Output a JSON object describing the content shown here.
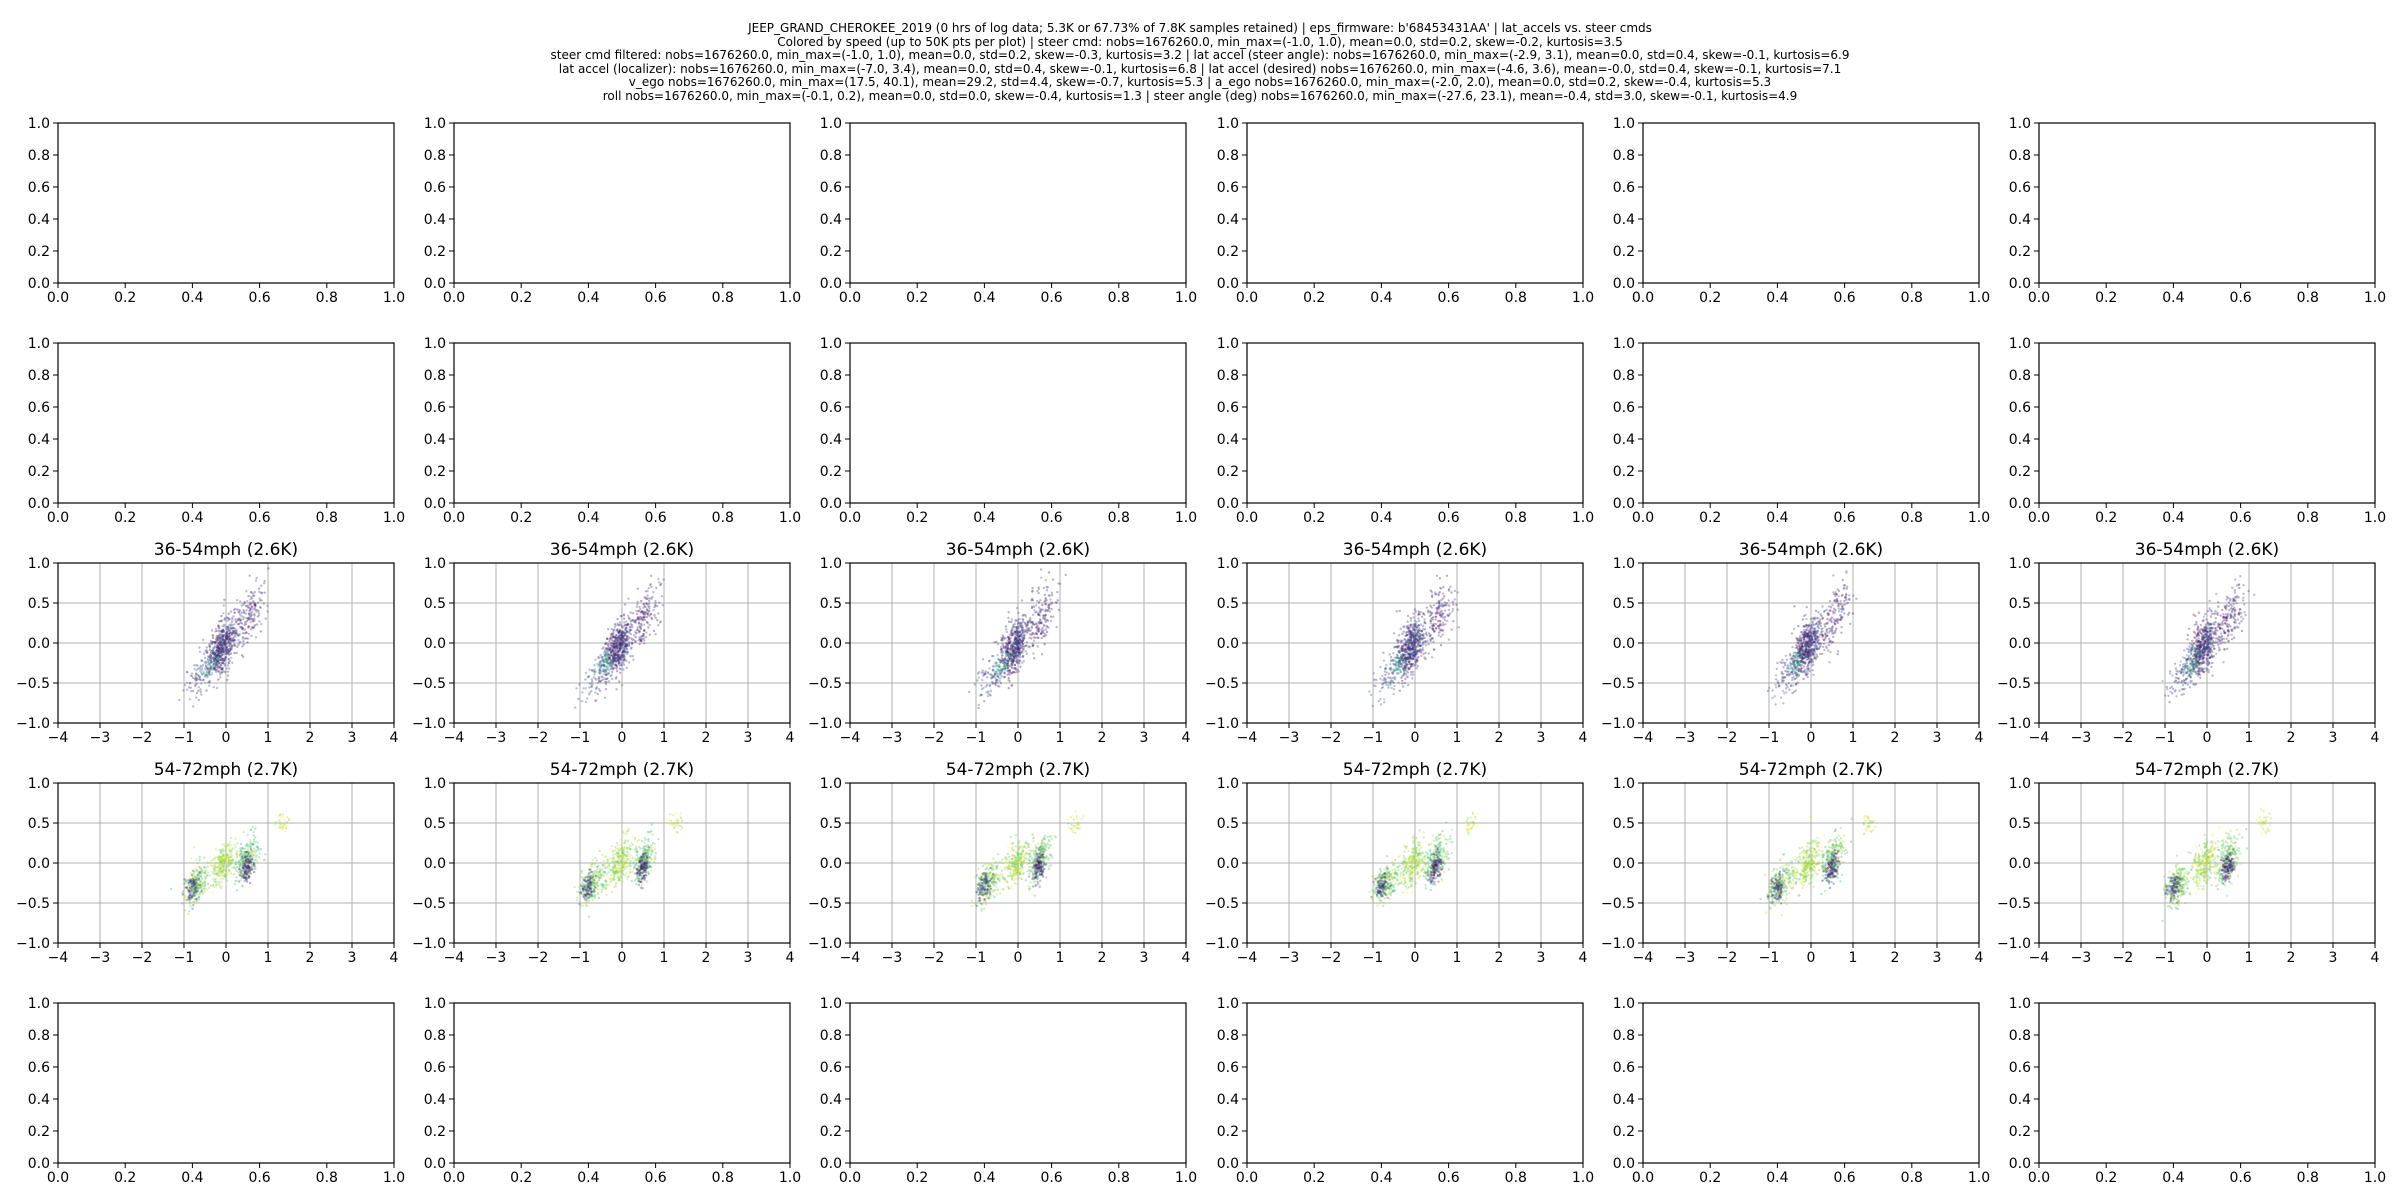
{
  "header": {
    "lines": [
      "JEEP_GRAND_CHEROKEE_2019 (0 hrs of log data; 5.3K or 67.73% of 7.8K samples retained) | eps_firmware: b'68453431AA' | lat_accels vs. steer cmds",
      "Colored by  speed (up to 50K pts per plot) | steer cmd: nobs=1676260.0, min_max=(-1.0, 1.0), mean=0.0, std=0.2, skew=-0.2, kurtosis=3.5",
      "steer cmd filtered: nobs=1676260.0, min_max=(-1.0, 1.0), mean=0.0, std=0.2, skew=-0.3, kurtosis=3.2 | lat accel (steer angle): nobs=1676260.0, min_max=(-2.9, 3.1), mean=0.0, std=0.4, skew=-0.1, kurtosis=6.9",
      "lat accel (localizer): nobs=1676260.0, min_max=(-7.0, 3.4), mean=0.0, std=0.4, skew=-0.1, kurtosis=6.8 | lat accel (desired) nobs=1676260.0, min_max=(-4.6, 3.6), mean=-0.0, std=0.4, skew=-0.1, kurtosis=7.1",
      "v_ego nobs=1676260.0, min_max=(17.5, 40.1), mean=29.2, std=4.4, skew=-0.7, kurtosis=5.3 | a_ego nobs=1676260.0, min_max=(-2.0, 2.0), mean=0.0, std=0.2, skew=-0.4, kurtosis=5.3",
      "roll nobs=1676260.0, min_max=(-0.1, 0.2), mean=0.0, std=0.0, skew=-0.4, kurtosis=1.3 | steer angle (deg) nobs=1676260.0, min_max=(-27.6, 23.1), mean=-0.4, std=3.0, skew=-0.1, kurtosis=4.9"
    ]
  },
  "chart_data": {
    "type": "scatter",
    "grid_rows": 5,
    "grid_cols": 6,
    "empty_axes": {
      "xlim": [
        0,
        1
      ],
      "ylim": [
        0,
        1
      ],
      "xticks": [
        "0.0",
        "0.2",
        "0.4",
        "0.6",
        "0.8",
        "1.0"
      ],
      "yticks": [
        "0.0",
        "0.2",
        "0.4",
        "0.6",
        "0.8",
        "1.0"
      ],
      "rows": [
        0,
        1,
        4
      ]
    },
    "data_axes": {
      "xlim": [
        -4,
        4
      ],
      "ylim": [
        -1,
        1
      ],
      "xticks": [
        "−4",
        "−3",
        "−2",
        "−1",
        "0",
        "1",
        "2",
        "3",
        "4"
      ],
      "yticks": [
        "−1.0",
        "−0.5",
        "0.0",
        "0.5",
        "1.0"
      ],
      "grid": true
    },
    "colormap": [
      "#440154",
      "#482878",
      "#3e4989",
      "#31688e",
      "#26828e",
      "#1f9e89",
      "#35b779",
      "#6ece58",
      "#b5de2b",
      "#fde725"
    ],
    "panels": [
      {
        "row": 2,
        "title": "36-54mph (2.6K)",
        "clusters": [
          {
            "x": -0.2,
            "y": -0.1,
            "sx": 0.12,
            "sy": 0.25,
            "slope": 0.5,
            "n": 260,
            "c": 0.08
          },
          {
            "x": 0.0,
            "y": 0.0,
            "sx": 0.1,
            "sy": 0.22,
            "slope": 0.6,
            "n": 240,
            "c": 0.18
          },
          {
            "x": 0.5,
            "y": 0.3,
            "sx": 0.22,
            "sy": 0.28,
            "slope": 0.6,
            "n": 200,
            "c": 0.12
          },
          {
            "x": -0.6,
            "y": -0.4,
            "sx": 0.2,
            "sy": 0.2,
            "slope": 0.5,
            "n": 100,
            "c": 0.22
          },
          {
            "x": -0.35,
            "y": -0.25,
            "sx": 0.1,
            "sy": 0.1,
            "slope": 0.4,
            "n": 60,
            "c": 0.55
          }
        ]
      },
      {
        "row": 3,
        "title": "54-72mph (2.7K)",
        "clusters": [
          {
            "x": -0.7,
            "y": -0.25,
            "sx": 0.15,
            "sy": 0.18,
            "slope": 0.4,
            "n": 220,
            "c": 0.8
          },
          {
            "x": -0.05,
            "y": 0.0,
            "sx": 0.14,
            "sy": 0.18,
            "slope": 0.5,
            "n": 240,
            "c": 0.85
          },
          {
            "x": 0.5,
            "y": 0.05,
            "sx": 0.14,
            "sy": 0.2,
            "slope": 0.5,
            "n": 220,
            "c": 0.75
          },
          {
            "x": 0.5,
            "y": -0.05,
            "sx": 0.06,
            "sy": 0.12,
            "slope": 0.6,
            "n": 120,
            "c": 0.12
          },
          {
            "x": -0.8,
            "y": -0.3,
            "sx": 0.08,
            "sy": 0.1,
            "slope": 0.4,
            "n": 100,
            "c": 0.2
          },
          {
            "x": 1.35,
            "y": 0.5,
            "sx": 0.08,
            "sy": 0.06,
            "slope": 0.2,
            "n": 30,
            "c": 0.9
          }
        ]
      }
    ]
  }
}
